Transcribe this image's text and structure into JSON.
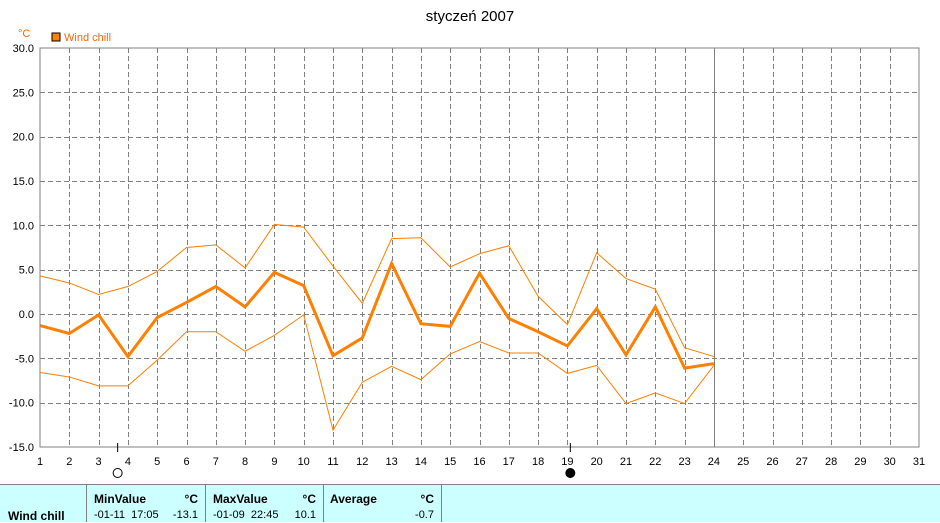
{
  "chart_data": {
    "type": "line",
    "title": "styczeń 2007",
    "unit": "°C",
    "legend": "Wind chill",
    "colors": {
      "series": "#ff7f00",
      "grid": "#808080"
    },
    "x": [
      1,
      2,
      3,
      4,
      5,
      6,
      7,
      8,
      9,
      10,
      11,
      12,
      13,
      14,
      15,
      16,
      17,
      18,
      19,
      20,
      21,
      22,
      23,
      24
    ],
    "x_ticks": [
      "1",
      "2",
      "3",
      "4",
      "5",
      "6",
      "7",
      "8",
      "9",
      "10",
      "11",
      "12",
      "13",
      "14",
      "15",
      "16",
      "17",
      "18",
      "19",
      "20",
      "21",
      "22",
      "23",
      "24",
      "25",
      "26",
      "27",
      "28",
      "29",
      "30",
      "31"
    ],
    "y_ticks": [
      "30.0",
      "25.0",
      "20.0",
      "15.0",
      "10.0",
      "5.0",
      "0.0",
      "-5.0",
      "-10.0",
      "-15.0"
    ],
    "xlim": [
      1,
      31
    ],
    "ylim": [
      -15,
      30
    ],
    "grid": true,
    "current_day": 24,
    "moon_phases": [
      {
        "day": 3.65,
        "phase": "full"
      },
      {
        "day": 19.1,
        "phase": "new"
      }
    ],
    "series": [
      {
        "name": "Wind chill",
        "style": "avg",
        "values": [
          -1.3,
          -2.2,
          -0.1,
          -4.8,
          -0.4,
          1.3,
          3.1,
          0.8,
          4.7,
          3.2,
          -4.7,
          -2.7,
          5.7,
          -1.1,
          -1.4,
          4.6,
          -0.5,
          -2.0,
          -3.6,
          0.6,
          -4.6,
          0.8,
          -6.1,
          -5.6
        ]
      },
      {
        "name": "max",
        "style": "thin",
        "values": [
          4.3,
          3.5,
          2.2,
          3.1,
          4.8,
          7.5,
          7.8,
          5.2,
          10.1,
          9.8,
          5.4,
          1.2,
          8.5,
          8.6,
          5.3,
          6.8,
          7.7,
          2.0,
          -1.2,
          6.9,
          4.0,
          2.8,
          -3.8,
          -4.8
        ]
      },
      {
        "name": "min",
        "style": "thin",
        "values": [
          -6.6,
          -7.1,
          -8.1,
          -8.1,
          -5.2,
          -2.0,
          -2.0,
          -4.2,
          -2.4,
          -0.1,
          -13.1,
          -7.7,
          -5.9,
          -7.4,
          -4.5,
          -3.1,
          -4.4,
          -4.4,
          -6.7,
          -5.8,
          -10.1,
          -8.9,
          -10.1,
          -5.8
        ]
      }
    ]
  },
  "stats": {
    "series_label": "Wind chill",
    "min": {
      "header": "MinValue",
      "unit": "°C",
      "datetime": "-01-11  17:05",
      "value": "-13.1"
    },
    "max": {
      "header": "MaxValue",
      "unit": "°C",
      "datetime": "-01-09  22:45",
      "value": "10.1"
    },
    "avg": {
      "header": "Average",
      "unit": "°C",
      "value": "-0.7"
    }
  }
}
